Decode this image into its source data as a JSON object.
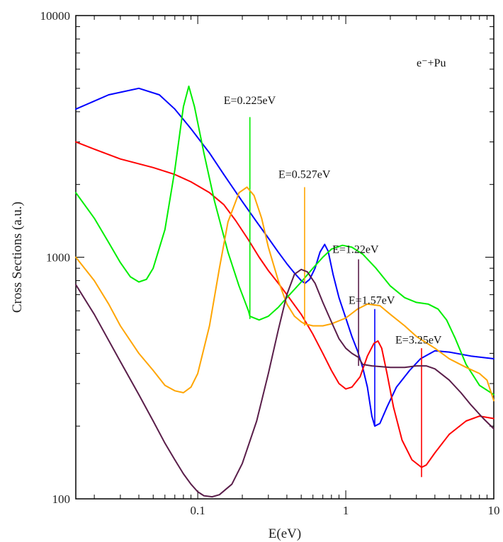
{
  "chart_data": {
    "type": "line",
    "title": "",
    "xlabel": "E(eV)",
    "ylabel": "Cross Sections (a.u.)",
    "xscale": "log",
    "yscale": "log",
    "xlim": [
      0.015,
      10
    ],
    "ylim": [
      100,
      10000
    ],
    "grid": false,
    "x_tick_labels": [
      {
        "value": 0.1,
        "label": "0.1"
      },
      {
        "value": 1,
        "label": "1"
      },
      {
        "value": 10,
        "label": "10"
      }
    ],
    "y_tick_labels": [
      {
        "value": 100,
        "label": "100"
      },
      {
        "value": 1000,
        "label": "1000"
      },
      {
        "value": 10000,
        "label": "10000"
      }
    ],
    "annotation_text": "e⁻+Pu",
    "series": [
      {
        "color": "#0000ff",
        "points": [
          [
            0.015,
            4100
          ],
          [
            0.025,
            4700
          ],
          [
            0.04,
            5000
          ],
          [
            0.055,
            4700
          ],
          [
            0.07,
            4100
          ],
          [
            0.09,
            3400
          ],
          [
            0.12,
            2700
          ],
          [
            0.15,
            2200
          ],
          [
            0.2,
            1700
          ],
          [
            0.25,
            1400
          ],
          [
            0.3,
            1200
          ],
          [
            0.35,
            1050
          ],
          [
            0.4,
            940
          ],
          [
            0.45,
            860
          ],
          [
            0.5,
            800
          ],
          [
            0.53,
            780
          ],
          [
            0.57,
            810
          ],
          [
            0.62,
            900
          ],
          [
            0.67,
            1050
          ],
          [
            0.72,
            1130
          ],
          [
            0.76,
            1060
          ],
          [
            0.82,
            850
          ],
          [
            0.9,
            680
          ],
          [
            1.0,
            560
          ],
          [
            1.1,
            470
          ],
          [
            1.2,
            410
          ],
          [
            1.3,
            350
          ],
          [
            1.4,
            290
          ],
          [
            1.5,
            220
          ],
          [
            1.57,
            200
          ],
          [
            1.7,
            205
          ],
          [
            1.9,
            240
          ],
          [
            2.2,
            290
          ],
          [
            2.7,
            340
          ],
          [
            3.2,
            380
          ],
          [
            4.0,
            410
          ],
          [
            5.0,
            405
          ],
          [
            7.0,
            390
          ],
          [
            10.0,
            380
          ]
        ],
        "spikes": [
          {
            "x": 1.57,
            "from": 200,
            "to": 610
          }
        ]
      },
      {
        "color": "#ff0000",
        "points": [
          [
            0.015,
            3000
          ],
          [
            0.02,
            2800
          ],
          [
            0.03,
            2550
          ],
          [
            0.05,
            2350
          ],
          [
            0.07,
            2200
          ],
          [
            0.09,
            2050
          ],
          [
            0.12,
            1850
          ],
          [
            0.15,
            1650
          ],
          [
            0.18,
            1420
          ],
          [
            0.22,
            1180
          ],
          [
            0.26,
            1000
          ],
          [
            0.3,
            880
          ],
          [
            0.35,
            780
          ],
          [
            0.4,
            700
          ],
          [
            0.5,
            580
          ],
          [
            0.6,
            480
          ],
          [
            0.7,
            400
          ],
          [
            0.8,
            340
          ],
          [
            0.9,
            300
          ],
          [
            1.0,
            285
          ],
          [
            1.1,
            290
          ],
          [
            1.25,
            320
          ],
          [
            1.4,
            390
          ],
          [
            1.55,
            440
          ],
          [
            1.65,
            450
          ],
          [
            1.75,
            420
          ],
          [
            1.9,
            330
          ],
          [
            2.1,
            240
          ],
          [
            2.4,
            175
          ],
          [
            2.8,
            145
          ],
          [
            3.25,
            135
          ],
          [
            3.5,
            138
          ],
          [
            4.0,
            155
          ],
          [
            5.0,
            185
          ],
          [
            6.5,
            210
          ],
          [
            8.0,
            220
          ],
          [
            10.0,
            215
          ]
        ],
        "spikes": [
          {
            "x": 3.25,
            "from": 123,
            "to": 420
          }
        ]
      },
      {
        "color": "#00ee00",
        "points": [
          [
            0.015,
            1850
          ],
          [
            0.02,
            1450
          ],
          [
            0.025,
            1150
          ],
          [
            0.03,
            950
          ],
          [
            0.035,
            830
          ],
          [
            0.04,
            790
          ],
          [
            0.045,
            810
          ],
          [
            0.05,
            900
          ],
          [
            0.06,
            1300
          ],
          [
            0.07,
            2300
          ],
          [
            0.08,
            4200
          ],
          [
            0.087,
            5100
          ],
          [
            0.095,
            4200
          ],
          [
            0.11,
            2700
          ],
          [
            0.13,
            1700
          ],
          [
            0.16,
            1050
          ],
          [
            0.19,
            760
          ],
          [
            0.22,
            600
          ],
          [
            0.225,
            570
          ],
          [
            0.26,
            550
          ],
          [
            0.3,
            570
          ],
          [
            0.35,
            620
          ],
          [
            0.4,
            680
          ],
          [
            0.5,
            790
          ],
          [
            0.6,
            900
          ],
          [
            0.7,
            1000
          ],
          [
            0.8,
            1080
          ],
          [
            0.95,
            1120
          ],
          [
            1.1,
            1100
          ],
          [
            1.3,
            1030
          ],
          [
            1.6,
            900
          ],
          [
            2.0,
            760
          ],
          [
            2.5,
            680
          ],
          [
            3.0,
            650
          ],
          [
            3.6,
            640
          ],
          [
            4.2,
            610
          ],
          [
            4.8,
            550
          ],
          [
            5.5,
            460
          ],
          [
            6.5,
            360
          ],
          [
            8.0,
            295
          ],
          [
            10.0,
            270
          ]
        ],
        "spikes": [
          {
            "x": 0.225,
            "from": 555,
            "to": 3800
          }
        ]
      },
      {
        "color": "#ffa500",
        "points": [
          [
            0.015,
            1000
          ],
          [
            0.02,
            800
          ],
          [
            0.025,
            640
          ],
          [
            0.03,
            520
          ],
          [
            0.04,
            400
          ],
          [
            0.05,
            340
          ],
          [
            0.06,
            295
          ],
          [
            0.07,
            280
          ],
          [
            0.08,
            275
          ],
          [
            0.09,
            290
          ],
          [
            0.1,
            330
          ],
          [
            0.12,
            520
          ],
          [
            0.14,
            900
          ],
          [
            0.16,
            1400
          ],
          [
            0.19,
            1850
          ],
          [
            0.215,
            1950
          ],
          [
            0.24,
            1800
          ],
          [
            0.27,
            1450
          ],
          [
            0.3,
            1100
          ],
          [
            0.35,
            800
          ],
          [
            0.4,
            640
          ],
          [
            0.45,
            570
          ],
          [
            0.5,
            540
          ],
          [
            0.527,
            530
          ],
          [
            0.6,
            520
          ],
          [
            0.7,
            520
          ],
          [
            0.8,
            530
          ],
          [
            1.0,
            560
          ],
          [
            1.2,
            610
          ],
          [
            1.4,
            640
          ],
          [
            1.7,
            630
          ],
          [
            2.0,
            580
          ],
          [
            2.5,
            520
          ],
          [
            3.0,
            470
          ],
          [
            4.0,
            420
          ],
          [
            5.0,
            380
          ],
          [
            6.5,
            350
          ],
          [
            8.0,
            330
          ],
          [
            9.0,
            310
          ],
          [
            10.0,
            255
          ]
        ],
        "spikes": [
          {
            "x": 0.527,
            "from": 520,
            "to": 1950
          }
        ]
      },
      {
        "color": "#5a1e4a",
        "points": [
          [
            0.015,
            770
          ],
          [
            0.02,
            580
          ],
          [
            0.03,
            370
          ],
          [
            0.04,
            270
          ],
          [
            0.05,
            210
          ],
          [
            0.06,
            170
          ],
          [
            0.07,
            145
          ],
          [
            0.08,
            127
          ],
          [
            0.09,
            115
          ],
          [
            0.1,
            107
          ],
          [
            0.11,
            103
          ],
          [
            0.125,
            102
          ],
          [
            0.14,
            104
          ],
          [
            0.17,
            115
          ],
          [
            0.2,
            140
          ],
          [
            0.25,
            210
          ],
          [
            0.3,
            330
          ],
          [
            0.35,
            500
          ],
          [
            0.4,
            700
          ],
          [
            0.45,
            850
          ],
          [
            0.5,
            890
          ],
          [
            0.55,
            870
          ],
          [
            0.62,
            780
          ],
          [
            0.7,
            650
          ],
          [
            0.8,
            540
          ],
          [
            0.9,
            460
          ],
          [
            1.0,
            420
          ],
          [
            1.1,
            400
          ],
          [
            1.22,
            385
          ],
          [
            1.3,
            360
          ],
          [
            1.5,
            355
          ],
          [
            2.0,
            350
          ],
          [
            2.5,
            350
          ],
          [
            3.0,
            355
          ],
          [
            3.5,
            355
          ],
          [
            4.0,
            345
          ],
          [
            5.0,
            310
          ],
          [
            6.0,
            275
          ],
          [
            7.0,
            245
          ],
          [
            8.5,
            215
          ],
          [
            10.0,
            195
          ]
        ],
        "spikes": [
          {
            "x": 1.22,
            "from": 355,
            "to": 980
          }
        ]
      }
    ],
    "annotations": [
      {
        "text": "E=0.225eV",
        "x": 0.225,
        "y": 4300
      },
      {
        "text": "E=0.527eV",
        "x": 0.527,
        "y": 2130
      },
      {
        "text": "E=1.22eV",
        "x": 1.22,
        "y": 1040
      },
      {
        "text": "E=1.57eV",
        "x": 1.57,
        "y": 640
      },
      {
        "text": "E=3.25eV",
        "x": 3.25,
        "y": 440
      }
    ]
  }
}
